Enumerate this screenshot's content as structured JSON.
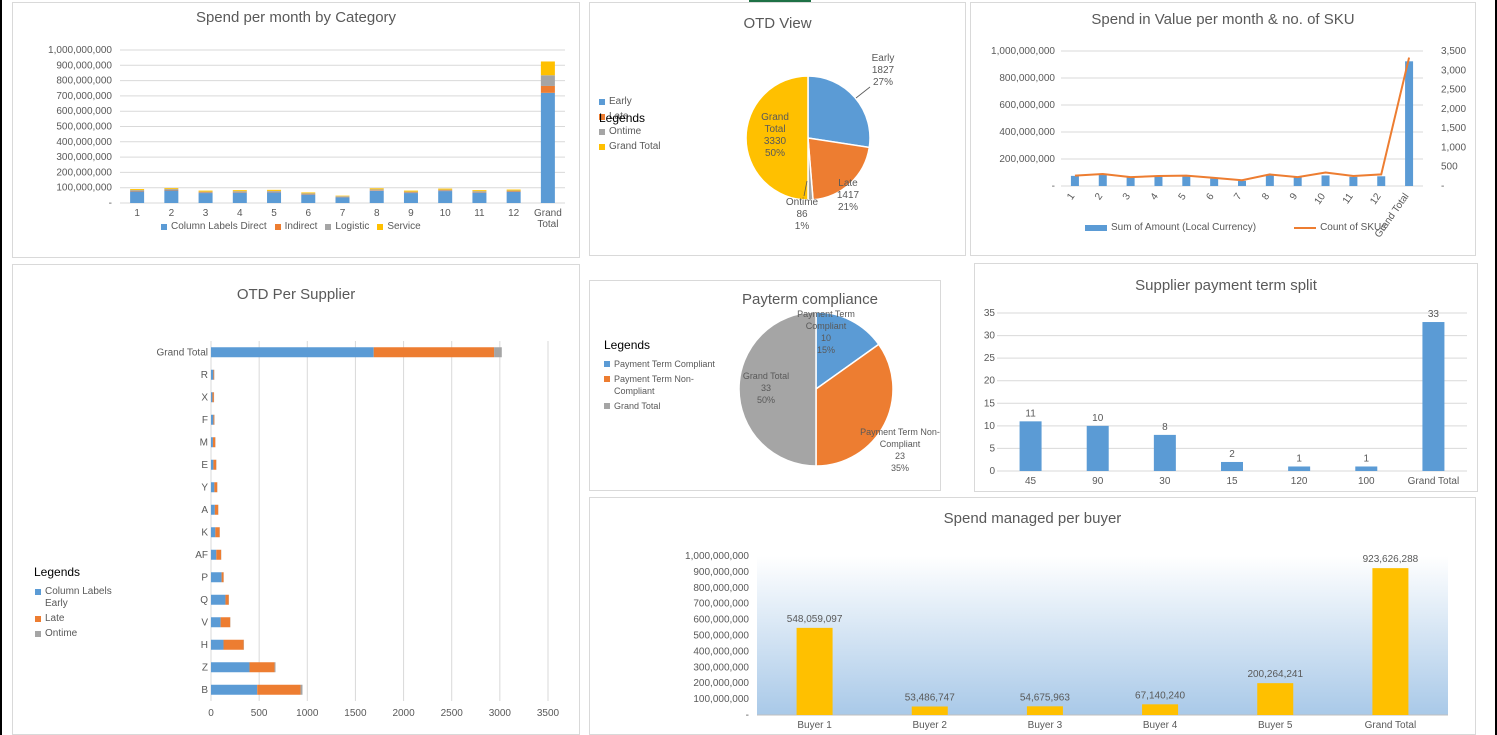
{
  "colors": {
    "blue": "#5b9bd5",
    "orange": "#ed7d31",
    "gray": "#a5a5a5",
    "gold": "#ffc000"
  },
  "spend_category": {
    "title": "Spend per month by Category",
    "legend": [
      "Column Labels Direct",
      "Indirect",
      "Logistic",
      "Service"
    ]
  },
  "otd_view": {
    "title": "OTD View",
    "legend": [
      "Early",
      "Late",
      "Ontime",
      "Grand Total"
    ],
    "legend_title": "Legends",
    "labels": [
      {
        "name": "Early",
        "value": "1827",
        "pct": "27%"
      },
      {
        "name": "Late",
        "value": "1417",
        "pct": "21%"
      },
      {
        "name": "Ontime",
        "value": "86",
        "pct": "1%"
      },
      {
        "name": "Grand Total",
        "value": "3330",
        "pct": "50%"
      }
    ]
  },
  "spend_sku": {
    "title": "Spend in Value per month & no. of SKU",
    "legend": [
      "Sum of Amount (Local Currency)",
      "Count of SKUs"
    ]
  },
  "otd_supplier": {
    "title": "OTD Per Supplier",
    "legend_title": "Legends",
    "legend": [
      "Column Labels Early",
      "Late",
      "Ontime"
    ]
  },
  "payterm": {
    "title": "Payterm compliance",
    "legend_title": "Legends",
    "legend": [
      "Payment Term Compliant",
      "Payment Term Non-Compliant",
      "Grand Total"
    ],
    "labels": [
      {
        "name": "Payment Term Compliant",
        "value": "10",
        "pct": "15%"
      },
      {
        "name": "Payment Term Non-Compliant",
        "value": "23",
        "pct": "35%"
      },
      {
        "name": "Grand Total",
        "value": "33",
        "pct": "50%"
      }
    ]
  },
  "supplier_split": {
    "title": "Supplier payment term split"
  },
  "buyer": {
    "title": "Spend managed per buyer"
  },
  "chart_data": [
    {
      "id": "spend_category",
      "type": "bar",
      "stacked": true,
      "categories": [
        "1",
        "2",
        "3",
        "4",
        "5",
        "6",
        "7",
        "8",
        "9",
        "10",
        "11",
        "12",
        "Grand Total"
      ],
      "series": [
        {
          "name": "Column Labels Direct",
          "values": [
            75000000,
            82000000,
            65000000,
            68000000,
            70000000,
            55000000,
            38000000,
            80000000,
            65000000,
            78000000,
            68000000,
            72000000,
            720000000
          ]
        },
        {
          "name": "Indirect",
          "values": [
            3000000,
            3000000,
            3000000,
            3000000,
            3000000,
            3000000,
            2000000,
            3000000,
            3000000,
            3000000,
            3000000,
            3000000,
            45000000
          ]
        },
        {
          "name": "Logistic",
          "values": [
            6000000,
            6000000,
            6000000,
            6000000,
            6000000,
            5000000,
            4000000,
            6000000,
            6000000,
            6000000,
            6000000,
            6000000,
            70000000
          ]
        },
        {
          "name": "Service",
          "values": [
            7000000,
            6000000,
            7000000,
            7000000,
            7000000,
            6000000,
            4000000,
            7000000,
            7000000,
            7000000,
            7000000,
            7000000,
            90000000
          ]
        }
      ],
      "ylim": [
        0,
        1000000000
      ],
      "yticks": [
        "1,000,000,000",
        "900,000,000",
        "800,000,000",
        "700,000,000",
        "600,000,000",
        "500,000,000",
        "400,000,000",
        "300,000,000",
        "200,000,000",
        "100,000,000",
        "-"
      ]
    },
    {
      "id": "otd_view",
      "type": "pie",
      "categories": [
        "Early",
        "Late",
        "Ontime",
        "Grand Total"
      ],
      "values": [
        1827,
        1417,
        86,
        3330
      ]
    },
    {
      "id": "spend_sku",
      "type": "bar+line",
      "categories": [
        "1",
        "2",
        "3",
        "4",
        "5",
        "6",
        "7",
        "8",
        "9",
        "10",
        "11",
        "12",
        "Grand Total"
      ],
      "series": [
        {
          "name": "Sum of Amount (Local Currency)",
          "type": "bar",
          "values": [
            75000000,
            82000000,
            65000000,
            68000000,
            70000000,
            55000000,
            38000000,
            80000000,
            65000000,
            78000000,
            68000000,
            72000000,
            923626288
          ]
        },
        {
          "name": "Count of SKUs",
          "type": "line",
          "axis": "right",
          "values": [
            270,
            310,
            230,
            260,
            270,
            210,
            150,
            300,
            230,
            350,
            260,
            300,
            3330
          ]
        }
      ],
      "ylim": [
        0,
        1000000000
      ],
      "y2lim": [
        0,
        3500
      ],
      "yticks": [
        "1,000,000,000",
        "800,000,000",
        "600,000,000",
        "400,000,000",
        "200,000,000",
        "-"
      ],
      "y2ticks": [
        "3,500",
        "3,000",
        "2,500",
        "2,000",
        "1,500",
        "1,000",
        "500",
        "-"
      ]
    },
    {
      "id": "otd_supplier",
      "type": "bar",
      "orientation": "horizontal",
      "stacked": true,
      "categories": [
        "Grand Total",
        "R",
        "X",
        "F",
        "M",
        "E",
        "Y",
        "A",
        "K",
        "AF",
        "P",
        "Q",
        "V",
        "H",
        "Z",
        "B"
      ],
      "series": [
        {
          "name": "Column Labels Early",
          "values": [
            1690,
            25,
            15,
            25,
            20,
            25,
            35,
            40,
            45,
            55,
            110,
            150,
            100,
            130,
            400,
            480
          ]
        },
        {
          "name": "Late",
          "values": [
            1250,
            8,
            15,
            10,
            25,
            30,
            30,
            35,
            45,
            50,
            20,
            35,
            100,
            210,
            260,
            450
          ]
        },
        {
          "name": "Ontime",
          "values": [
            80,
            2,
            2,
            2,
            2,
            2,
            2,
            2,
            2,
            2,
            2,
            2,
            2,
            3,
            10,
            20
          ]
        }
      ],
      "xlim": [
        0,
        3500
      ],
      "xticks": [
        "0",
        "500",
        "1000",
        "1500",
        "2000",
        "2500",
        "3000",
        "3500"
      ]
    },
    {
      "id": "payterm",
      "type": "pie",
      "categories": [
        "Payment Term Compliant",
        "Payment Term Non-Compliant",
        "Grand Total"
      ],
      "values": [
        10,
        23,
        33
      ]
    },
    {
      "id": "supplier_split",
      "type": "bar",
      "categories": [
        "45",
        "90",
        "30",
        "15",
        "120",
        "100",
        "Grand Total"
      ],
      "values": [
        11,
        10,
        8,
        2,
        1,
        1,
        33
      ],
      "ylim": [
        0,
        35
      ],
      "yticks": [
        "35",
        "30",
        "25",
        "20",
        "15",
        "10",
        "5",
        "0"
      ]
    },
    {
      "id": "buyer",
      "type": "bar",
      "categories": [
        "Buyer 1",
        "Buyer 2",
        "Buyer 3",
        "Buyer 4",
        "Buyer 5",
        "Grand Total"
      ],
      "values": [
        548059097,
        53486747,
        54675963,
        67140240,
        200264241,
        923626288
      ],
      "data_labels": [
        "548,059,097",
        "53,486,747",
        "54,675,963",
        "67,140,240",
        "200,264,241",
        "923,626,288"
      ],
      "ylim": [
        0,
        1000000000
      ],
      "yticks": [
        "1,000,000,000",
        "900,000,000",
        "800,000,000",
        "700,000,000",
        "600,000,000",
        "500,000,000",
        "400,000,000",
        "300,000,000",
        "200,000,000",
        "100,000,000",
        "-"
      ]
    }
  ]
}
